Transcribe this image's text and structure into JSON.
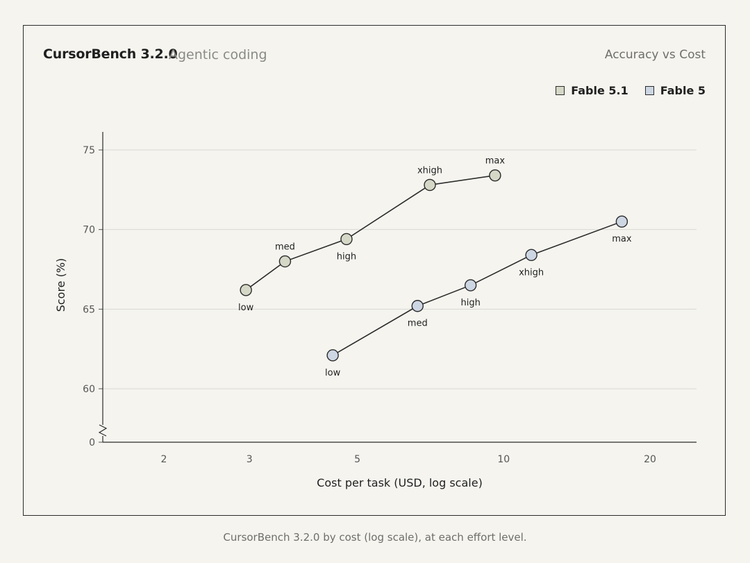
{
  "header": {
    "title": "CursorBench 3.2.0",
    "subtitle": "Agentic coding",
    "right_title": "Accuracy vs Cost"
  },
  "caption": "CursorBench 3.2.0 by cost (log scale), at each effort level.",
  "colors": {
    "fable51": "#d5d8c6",
    "fable5": "#cdd6e3",
    "line": "#2b2b2b",
    "grid": "#d9d8d2"
  },
  "chart_data": {
    "type": "line",
    "title": "CursorBench 3.2.0",
    "subtitle": "Agentic coding",
    "xlabel": "Cost per task (USD, log scale)",
    "ylabel": "Score (%)",
    "x_scale": "log",
    "xlim": [
      1.6,
      27
    ],
    "ylim": [
      57,
      76
    ],
    "x_ticks": [
      2,
      3,
      5,
      10,
      20
    ],
    "y_ticks": [
      75,
      70,
      65,
      60
    ],
    "y_axis_break": "0",
    "grid": true,
    "legend_position": "top-right",
    "series": [
      {
        "name": "Fable 5.1",
        "color": "#d5d8c6",
        "points": [
          {
            "x": 2.95,
            "y": 66.2,
            "label": "low"
          },
          {
            "x": 3.55,
            "y": 68.0,
            "label": "med"
          },
          {
            "x": 4.75,
            "y": 69.4,
            "label": "high"
          },
          {
            "x": 7.05,
            "y": 72.8,
            "label": "xhigh"
          },
          {
            "x": 9.6,
            "y": 73.4,
            "label": "max"
          }
        ]
      },
      {
        "name": "Fable 5",
        "color": "#cdd6e3",
        "points": [
          {
            "x": 4.45,
            "y": 62.1,
            "label": "low"
          },
          {
            "x": 6.65,
            "y": 65.2,
            "label": "med"
          },
          {
            "x": 8.55,
            "y": 66.5,
            "label": "high"
          },
          {
            "x": 11.4,
            "y": 68.4,
            "label": "xhigh"
          },
          {
            "x": 17.5,
            "y": 70.5,
            "label": "max"
          }
        ]
      }
    ]
  }
}
